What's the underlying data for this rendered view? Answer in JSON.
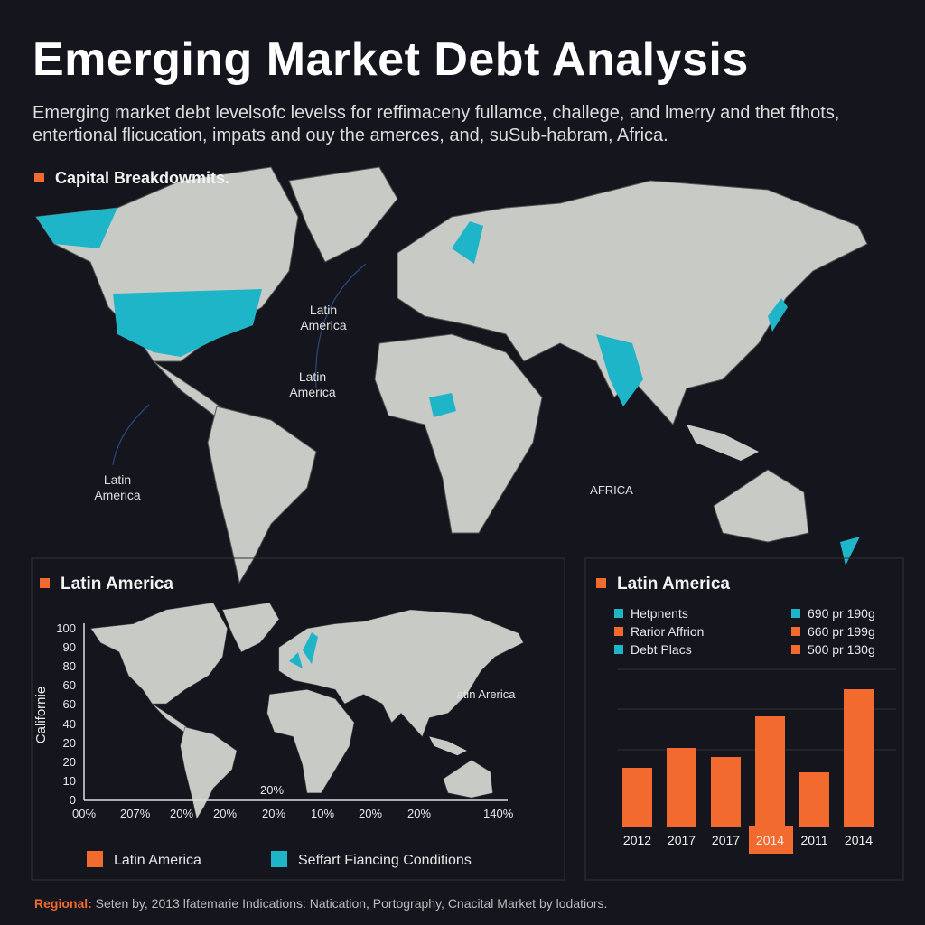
{
  "header": {
    "title": "Emerging Market Debt Analysis",
    "subtitle_lines": [
      "Emerging market debt levelsofc levelss for reffimaceny fullamce, challege, and lmerry and thet fthots,",
      "entertional flicucation, impats and ouy the amerces, and, suSub-habram, Africa."
    ]
  },
  "world_map": {
    "heading": "Capital Breakdowmits.",
    "labels": [
      "Latin America",
      "Latin America",
      "Latin America",
      "AFRICA"
    ]
  },
  "left_panel": {
    "heading": "Latin America",
    "axis_title": "Californie",
    "y_labels": [
      "100",
      "90",
      "80",
      "60",
      "60",
      "40",
      "20",
      "20",
      "10",
      "0"
    ],
    "x_labels": [
      "00%",
      "207%",
      "20%",
      "20%",
      "20%",
      "10%",
      "20%",
      "20%",
      "140%"
    ],
    "map_labels": [
      "atin Arerica",
      "20%"
    ]
  },
  "right_panel": {
    "legend": [
      {
        "label": "Hetpnents",
        "color": "#1fb5c9"
      },
      {
        "label": "Rarior Affrion",
        "color": "#f26a2e"
      },
      {
        "label": "Debt Placs",
        "color": "#1fb5c9"
      }
    ],
    "legend_right": [
      {
        "label": "690 pr 190g",
        "color": "#1fb5c9"
      },
      {
        "label": "660 pr 199g",
        "color": "#f26a2e"
      },
      {
        "label": "500 pr 130g",
        "color": "#f26a2e"
      }
    ]
  },
  "chart_data": {
    "type": "bar",
    "title": "Latin America",
    "categories": [
      "2012",
      "2017",
      "2017",
      "2014",
      "2011",
      "2014"
    ],
    "values": [
      65,
      87,
      77,
      122,
      60,
      152
    ],
    "color": "#f26a2e",
    "ylim": [
      0,
      175
    ]
  },
  "bottom_legend": [
    {
      "label": "Latin America",
      "color": "#f26a2e"
    },
    {
      "label": "Seffart Fiancing Conditions",
      "color": "#1fb5c9"
    }
  ],
  "footer": {
    "label": "Regional:",
    "text": "Seten by, 2013 lfatemarie Indications: Natication, Portography, Cnacital Market by lodatiors."
  }
}
